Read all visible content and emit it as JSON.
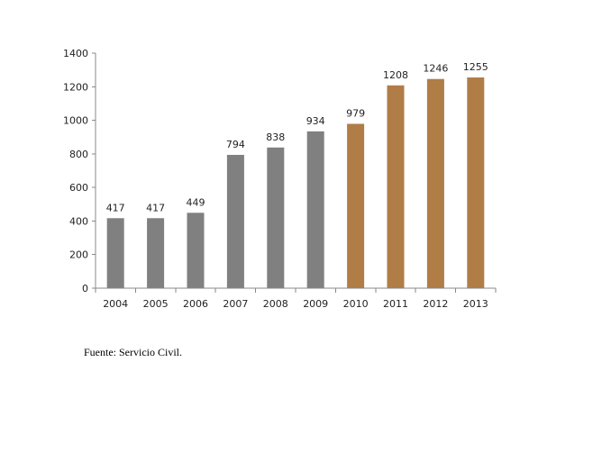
{
  "chart_data": {
    "type": "bar",
    "title": "",
    "xlabel": "",
    "ylabel": "",
    "categories": [
      "2004",
      "2005",
      "2006",
      "2007",
      "2008",
      "2009",
      "2010",
      "2011",
      "2012",
      "2013"
    ],
    "values": [
      417,
      417,
      449,
      794,
      838,
      934,
      979,
      1208,
      1246,
      1255
    ],
    "bar_colors": [
      "#808080",
      "#808080",
      "#808080",
      "#808080",
      "#808080",
      "#808080",
      "#b07d47",
      "#b07d47",
      "#b07d47",
      "#b07d47"
    ],
    "ylim": [
      0,
      1400
    ],
    "yticks": [
      0,
      200,
      400,
      600,
      800,
      1000,
      1200,
      1400
    ],
    "grid": false,
    "legend": "none",
    "data_labels": true
  },
  "source_note": "Fuente: Servicio Civil."
}
